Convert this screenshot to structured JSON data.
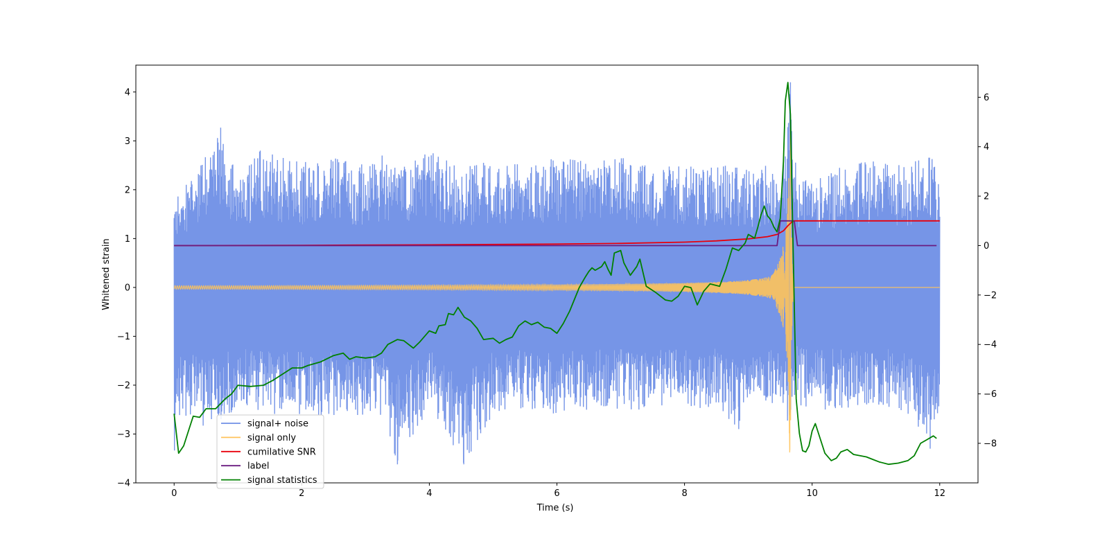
{
  "chart_data": {
    "type": "line",
    "title": "",
    "xlabel": "Time (s)",
    "ylabel": "Whitened strain",
    "y2label": "",
    "xlim": [
      -0.6,
      12.6
    ],
    "ylim": [
      -4,
      4.55
    ],
    "y2lim": [
      -9.6,
      7.3
    ],
    "x_ticks": [
      0,
      2,
      4,
      6,
      8,
      10,
      12
    ],
    "y_ticks": [
      -4,
      -3,
      -2,
      -1,
      0,
      1,
      2,
      3,
      4
    ],
    "y2_ticks": [
      -8,
      -6,
      -4,
      -2,
      0,
      2,
      4,
      6
    ],
    "grid": false,
    "legend_position": "lower-left",
    "series": [
      {
        "name": "signal+ noise",
        "axis": "left",
        "color": "#6f8fe6",
        "envelope_upper_x": [
          0,
          0.3,
          0.73,
          1,
          1.35,
          2,
          2.5,
          3,
          3.3,
          3.65,
          4,
          4.5,
          5,
          5.5,
          6,
          6.5,
          7,
          7.5,
          7.9,
          8.3,
          8.7,
          9,
          9.3,
          9.5,
          9.6,
          9.66,
          9.75,
          10,
          10.5,
          11,
          11.5,
          11.8,
          12
        ],
        "envelope_upper_y": [
          1.85,
          2.25,
          3.27,
          2.3,
          2.8,
          2.55,
          2.7,
          2.5,
          2.75,
          2.5,
          2.8,
          2.45,
          2.6,
          2.55,
          2.65,
          2.6,
          2.7,
          2.5,
          2.55,
          2.45,
          2.5,
          2.4,
          2.5,
          2.4,
          2.9,
          4.2,
          2.5,
          2.2,
          2.5,
          2.6,
          2.5,
          2.8,
          2.55
        ],
        "envelope_lower_x": [
          0,
          0.1,
          0.5,
          1,
          1.5,
          2,
          2.5,
          2.8,
          3.2,
          3.5,
          4,
          4.54,
          5,
          5.5,
          6,
          6.5,
          7,
          7.5,
          8,
          8.5,
          8.85,
          9,
          9.3,
          9.55,
          9.66,
          9.75,
          10,
          10.5,
          11,
          11.5,
          11.85,
          12
        ],
        "envelope_lower_y": [
          -3.55,
          -2.6,
          -2.9,
          -2.5,
          -2.6,
          -2.6,
          -2.65,
          -2.8,
          -2.5,
          -3.62,
          -2.5,
          -3.62,
          -2.6,
          -2.5,
          -2.6,
          -2.5,
          -2.5,
          -2.55,
          -2.5,
          -2.45,
          -2.9,
          -2.5,
          -2.45,
          -2.5,
          -3.25,
          -2.4,
          -2.5,
          -2.5,
          -2.45,
          -2.6,
          -3.3,
          -2.6
        ],
        "spikes": [
          {
            "x": 0.73,
            "y": 3.27
          },
          {
            "x": 1.35,
            "y": 2.8
          },
          {
            "x": 4.54,
            "y": -3.62
          },
          {
            "x": 3.5,
            "y": -3.62
          },
          {
            "x": 8.85,
            "y": -2.9
          },
          {
            "x": 9.66,
            "y": 4.2
          },
          {
            "x": 11.85,
            "y": -3.3
          }
        ]
      },
      {
        "name": "signal only",
        "axis": "left",
        "color": "#ffc35a",
        "merger_time": 9.66,
        "peak_amplitude": 3.6
      },
      {
        "name": "cumilative SNR",
        "axis": "right",
        "color": "#e8000b",
        "x": [
          0,
          2,
          4,
          6,
          7,
          8,
          8.5,
          9,
          9.3,
          9.45,
          9.55,
          9.62,
          9.68,
          9.72,
          9.8,
          10,
          11,
          12
        ],
        "y": [
          0,
          0.01,
          0.03,
          0.06,
          0.09,
          0.14,
          0.19,
          0.27,
          0.36,
          0.45,
          0.6,
          0.8,
          0.95,
          1.0,
          1.0,
          1.0,
          1.0,
          1.0
        ]
      },
      {
        "name": "label",
        "axis": "right",
        "color": "#6a1b80",
        "x": [
          0,
          9.45,
          9.5,
          9.72,
          9.77,
          11.95
        ],
        "y": [
          0,
          0,
          1.0,
          1.0,
          0,
          0
        ]
      },
      {
        "name": "signal statistics",
        "axis": "right",
        "color": "#008000",
        "x": [
          0,
          0.07,
          0.15,
          0.25,
          0.3,
          0.4,
          0.5,
          0.65,
          0.8,
          0.9,
          1.0,
          1.2,
          1.4,
          1.55,
          1.7,
          1.85,
          2.0,
          2.1,
          2.3,
          2.5,
          2.65,
          2.75,
          2.85,
          3.0,
          3.15,
          3.25,
          3.35,
          3.5,
          3.6,
          3.75,
          3.85,
          3.95,
          4.0,
          4.1,
          4.15,
          4.25,
          4.3,
          4.38,
          4.45,
          4.55,
          4.65,
          4.75,
          4.85,
          5.0,
          5.1,
          5.2,
          5.3,
          5.4,
          5.5,
          5.6,
          5.7,
          5.8,
          5.9,
          6.0,
          6.1,
          6.2,
          6.35,
          6.45,
          6.5,
          6.55,
          6.6,
          6.7,
          6.75,
          6.8,
          6.85,
          6.9,
          7.0,
          7.05,
          7.15,
          7.25,
          7.3,
          7.4,
          7.55,
          7.7,
          7.8,
          7.9,
          8.0,
          8.1,
          8.2,
          8.3,
          8.4,
          8.55,
          8.65,
          8.75,
          8.85,
          8.95,
          9.0,
          9.1,
          9.15,
          9.2,
          9.25,
          9.3,
          9.35,
          9.4,
          9.45,
          9.5,
          9.55,
          9.58,
          9.62,
          9.66,
          9.7,
          9.75,
          9.8,
          9.85,
          9.9,
          9.95,
          10.0,
          10.05,
          10.1,
          10.15,
          10.2,
          10.3,
          10.38,
          10.45,
          10.55,
          10.65,
          10.75,
          10.85,
          10.95,
          11.05,
          11.2,
          11.35,
          11.5,
          11.6,
          11.7,
          11.8,
          11.9,
          11.95
        ],
        "y": [
          -6.8,
          -8.4,
          -8.1,
          -7.3,
          -6.9,
          -6.95,
          -6.6,
          -6.6,
          -6.2,
          -6.0,
          -5.65,
          -5.7,
          -5.65,
          -5.45,
          -5.2,
          -4.95,
          -4.95,
          -4.85,
          -4.7,
          -4.45,
          -4.35,
          -4.6,
          -4.5,
          -4.55,
          -4.5,
          -4.35,
          -4.0,
          -3.8,
          -3.85,
          -4.15,
          -3.9,
          -3.6,
          -3.45,
          -3.55,
          -3.25,
          -3.2,
          -2.75,
          -2.8,
          -2.5,
          -2.9,
          -3.05,
          -3.35,
          -3.8,
          -3.75,
          -3.95,
          -3.8,
          -3.7,
          -3.25,
          -3.05,
          -3.2,
          -3.1,
          -3.3,
          -3.35,
          -3.55,
          -3.15,
          -2.65,
          -1.7,
          -1.25,
          -1.05,
          -0.9,
          -1.0,
          -0.85,
          -0.65,
          -0.95,
          -1.2,
          -0.3,
          -0.2,
          -0.7,
          -1.2,
          -0.85,
          -0.55,
          -1.65,
          -1.9,
          -2.2,
          -2.25,
          -2.05,
          -1.65,
          -1.7,
          -2.4,
          -1.85,
          -1.55,
          -1.65,
          -0.95,
          -0.1,
          -0.2,
          0.1,
          0.45,
          0.3,
          0.75,
          1.25,
          1.6,
          1.2,
          1.05,
          0.75,
          0.55,
          1.1,
          3.4,
          5.85,
          6.6,
          5.3,
          0.1,
          -6.2,
          -7.6,
          -8.3,
          -8.35,
          -8.1,
          -7.5,
          -7.2,
          -7.6,
          -8.0,
          -8.4,
          -8.7,
          -8.6,
          -8.35,
          -8.25,
          -8.45,
          -8.5,
          -8.55,
          -8.65,
          -8.75,
          -8.85,
          -8.8,
          -8.7,
          -8.5,
          -8.0,
          -7.85,
          -7.7,
          -7.8
        ]
      }
    ]
  }
}
